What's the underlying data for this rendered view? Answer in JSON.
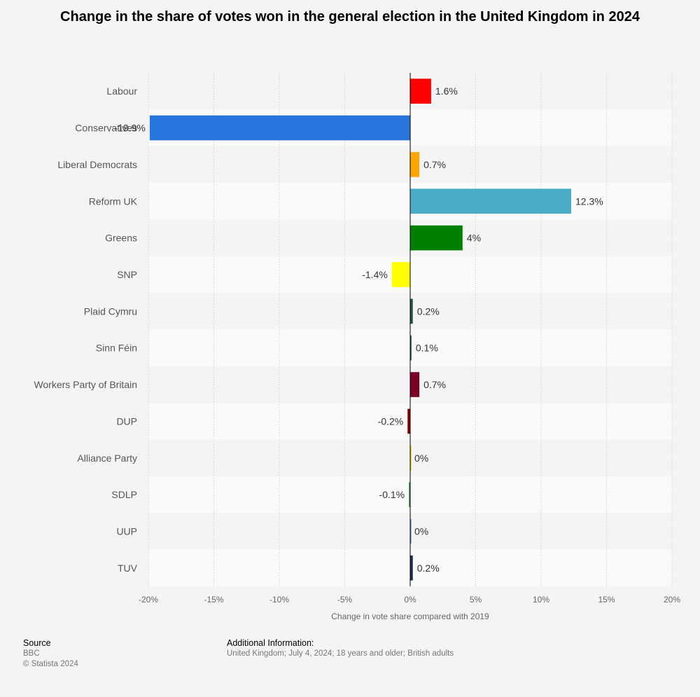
{
  "chart_data": {
    "type": "bar",
    "orientation": "horizontal",
    "title": "Change in the share of votes won in the general election in the United Kingdom in 2024",
    "xlabel": "Change in vote share compared with 2019",
    "ylabel": "",
    "xlim": [
      -20,
      20
    ],
    "x_ticks": [
      -20,
      -15,
      -10,
      -5,
      0,
      5,
      10,
      15,
      20
    ],
    "x_tick_labels": [
      "-20%",
      "-15%",
      "-10%",
      "-5%",
      "0%",
      "5%",
      "10%",
      "15%",
      "20%"
    ],
    "categories": [
      "Labour",
      "Conservatives",
      "Liberal Democrats",
      "Reform UK",
      "Greens",
      "SNP",
      "Plaid Cymru",
      "Sinn Féin",
      "Workers Party of Britain",
      "DUP",
      "Alliance Party",
      "SDLP",
      "UUP",
      "TUV"
    ],
    "values": [
      1.6,
      -19.9,
      0.7,
      12.3,
      4,
      -1.4,
      0.2,
      0.1,
      0.7,
      -0.2,
      0,
      -0.1,
      0,
      0.2
    ],
    "value_labels": [
      "1.6%",
      "-19.9%",
      "0.7%",
      "12.3%",
      "4%",
      "-1.4%",
      "0.2%",
      "0.1%",
      "0.7%",
      "-0.2%",
      "0%",
      "-0.1%",
      "0%",
      "0.2%"
    ],
    "colors": [
      "#ff0000",
      "#2876dd",
      "#ffa500",
      "#4bacc6",
      "#008000",
      "#ffff00",
      "#1e5640",
      "#1e6b46",
      "#7b0023",
      "#8b0000",
      "#e8c400",
      "#3e9b3a",
      "#4a8ad0",
      "#1a2c5a"
    ],
    "grid": true
  },
  "footer": {
    "source_heading": "Source",
    "source_name": "BBC",
    "copyright": "© Statista 2024",
    "info_heading": "Additional Information:",
    "info_text": "United Kingdom; July 4, 2024; 18 years and older; British adults"
  }
}
